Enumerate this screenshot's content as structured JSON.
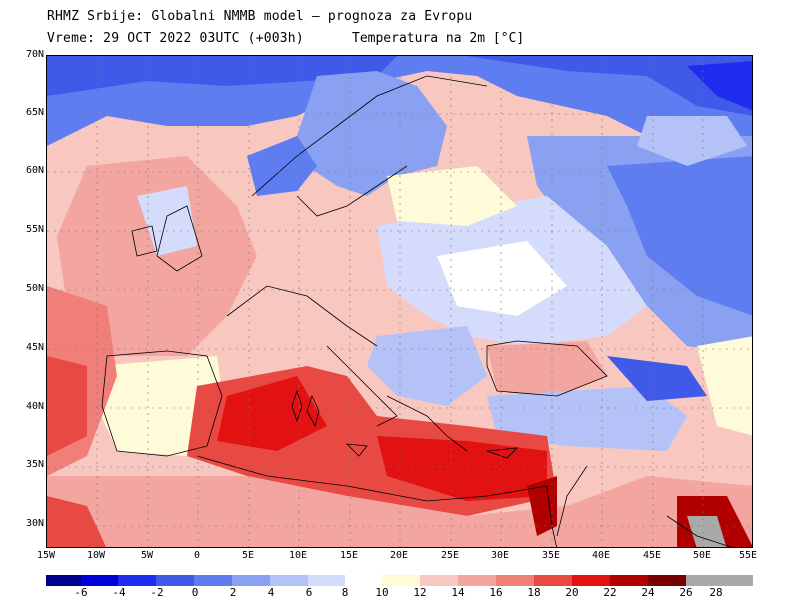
{
  "header": {
    "line1": "RHMZ Srbije: Globalni NMMB model — prognoza za Evropu",
    "line2": "Vreme: 29 OCT 2022 03UTC (+003h)",
    "line2b": "Temperatura na 2m [°C]"
  },
  "lat_labels": [
    "70N",
    "65N",
    "60N",
    "55N",
    "50N",
    "45N",
    "40N",
    "35N",
    "30N"
  ],
  "lon_labels": [
    "15W",
    "10W",
    "5W",
    "0",
    "5E",
    "10E",
    "15E",
    "20E",
    "25E",
    "30E",
    "35E",
    "40E",
    "45E",
    "50E",
    "55E"
  ],
  "colorbar": {
    "labels": [
      "-6",
      "-4",
      "-2",
      "0",
      "2",
      "4",
      "6",
      "8",
      "10",
      "12",
      "14",
      "16",
      "18",
      "20",
      "22",
      "24",
      "26",
      "28"
    ],
    "colors": [
      "#000090",
      "#0000d8",
      "#1f2cf0",
      "#3f59e8",
      "#5d7df0",
      "#8aa0f0",
      "#b4c2f7",
      "#d5dbfb",
      "#ffffff",
      "#fffad7",
      "#f8c8c3",
      "#f3a5a0",
      "#ef7f78",
      "#e84a43",
      "#e21212",
      "#b00000",
      "#780000",
      "#a9a9a9"
    ]
  }
}
